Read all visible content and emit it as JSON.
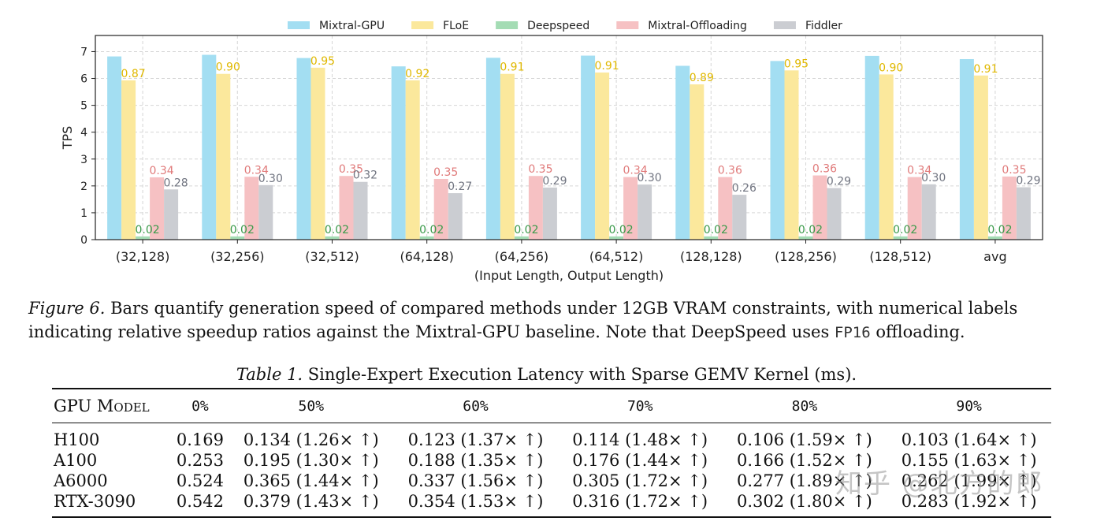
{
  "chart_data": {
    "type": "bar",
    "ylabel": "TPS",
    "xlabel": "(Input Length, Output Length)",
    "ylim": [
      0,
      7.6
    ],
    "yticks": [
      0,
      1,
      2,
      3,
      4,
      5,
      6,
      7
    ],
    "grid": true,
    "legend_position": "top",
    "categories": [
      "(32,128)",
      "(32,256)",
      "(32,512)",
      "(64,128)",
      "(64,256)",
      "(64,512)",
      "(128,128)",
      "(128,256)",
      "(128,512)",
      "avg"
    ],
    "series": [
      {
        "name": "Mixtral-GPU",
        "color": "#a3def2",
        "values": [
          6.82,
          6.88,
          6.76,
          6.45,
          6.77,
          6.85,
          6.47,
          6.65,
          6.84,
          6.72
        ],
        "labels": null,
        "label_color": null
      },
      {
        "name": "FLoE",
        "color": "#fbe89c",
        "values": [
          5.93,
          6.17,
          6.4,
          5.93,
          6.17,
          6.22,
          5.78,
          6.3,
          6.15,
          6.11
        ],
        "labels": [
          "0.87",
          "0.90",
          "0.95",
          "0.92",
          "0.91",
          "0.91",
          "0.89",
          "0.95",
          "0.90",
          "0.91"
        ],
        "label_color": "#e0b800"
      },
      {
        "name": "Deepspeed",
        "color": "#a4dcb4",
        "values": [
          0.12,
          0.12,
          0.12,
          0.12,
          0.12,
          0.12,
          0.12,
          0.12,
          0.12,
          0.12
        ],
        "labels": [
          "0.02",
          "0.02",
          "0.02",
          "0.02",
          "0.02",
          "0.02",
          "0.02",
          "0.02",
          "0.02",
          "0.02"
        ],
        "label_color": "#3a9a4a"
      },
      {
        "name": "Mixtral-Offloading",
        "color": "#f6c1c3",
        "values": [
          2.32,
          2.34,
          2.37,
          2.26,
          2.37,
          2.33,
          2.33,
          2.39,
          2.33,
          2.35
        ],
        "labels": [
          "0.34",
          "0.34",
          "0.35",
          "0.35",
          "0.35",
          "0.34",
          "0.36",
          "0.36",
          "0.34",
          "0.35"
        ],
        "label_color": "#e07a7a"
      },
      {
        "name": "Fiddler",
        "color": "#cbcdd2",
        "values": [
          1.87,
          2.03,
          2.15,
          1.73,
          1.94,
          2.05,
          1.67,
          1.92,
          2.06,
          1.95
        ],
        "labels": [
          "0.28",
          "0.30",
          "0.32",
          "0.27",
          "0.29",
          "0.30",
          "0.26",
          "0.29",
          "0.30",
          "0.29"
        ],
        "label_color": "#707480"
      }
    ]
  },
  "figure": {
    "label": "Figure 6.",
    "text_a": " Bars quantify generation speed of compared methods under 12GB VRAM constraints, with numerical labels indicating relative speedup ratios against the Mixtral-GPU baseline. Note that DeepSpeed uses ",
    "mono": "FP16",
    "text_b": " offloading."
  },
  "table": {
    "label": "Table 1.",
    "title": " Single-Expert Execution Latency with Sparse GEMV Kernel (ms).",
    "headers": [
      "GPU Model",
      "0%",
      "50%",
      "60%",
      "70%",
      "80%",
      "90%"
    ],
    "rows": [
      [
        "H100",
        "0.169",
        "0.134 (1.26× ↑)",
        "0.123 (1.37× ↑)",
        "0.114 (1.48× ↑)",
        "0.106 (1.59× ↑)",
        "0.103 (1.64× ↑)"
      ],
      [
        "A100",
        "0.253",
        "0.195 (1.30× ↑)",
        "0.188 (1.35× ↑)",
        "0.176 (1.44× ↑)",
        "0.166 (1.52× ↑)",
        "0.155 (1.63× ↑)"
      ],
      [
        "A6000",
        "0.524",
        "0.365 (1.44× ↑)",
        "0.337 (1.56× ↑)",
        "0.305 (1.72× ↑)",
        "0.277 (1.89× ↑)",
        "0.262 (1.99× ↑)"
      ],
      [
        "RTX-3090",
        "0.542",
        "0.379 (1.43× ↑)",
        "0.354 (1.53× ↑)",
        "0.316 (1.72× ↑)",
        "0.302 (1.80× ↑)",
        "0.283 (1.92× ↑)"
      ]
    ]
  },
  "watermark": "知乎 @北方的郎"
}
